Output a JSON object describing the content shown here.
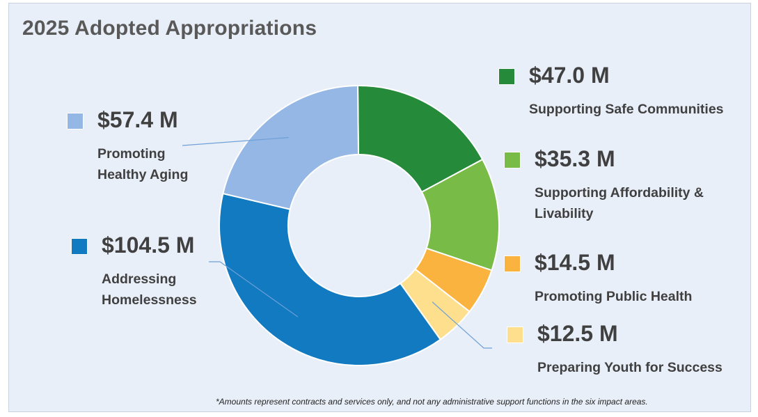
{
  "chart_data": {
    "type": "pie",
    "title": "2025 Adopted Appropriations",
    "unit": "$ M",
    "categories": [
      "Supporting Safe Communities",
      "Supporting Affordability & Livability",
      "Promoting Public Health",
      "Preparing Youth for Success",
      "Addressing Homelessness",
      "Promoting Healthy Aging"
    ],
    "values": [
      47.0,
      35.3,
      14.5,
      12.5,
      104.5,
      57.4
    ],
    "value_labels": [
      "$47.0 M",
      "$35.3 M",
      "$14.5 M",
      "$12.5 M",
      "$104.5 M",
      "$57.4 M"
    ],
    "legend_labels": [
      "Supporting Safe Communities",
      "Supporting Affordability &\nLivability",
      "Promoting Public Health",
      "Preparing Youth for Success",
      "Addressing\nHomelessness",
      "Promoting\nHealthy Aging"
    ],
    "colors": [
      "#258b3a",
      "#78bb47",
      "#fbb33f",
      "#fddf8e",
      "#127ac1",
      "#94b7e5"
    ],
    "donut": true,
    "footnote": "*Amounts represent contracts and services only, and not any administrative support functions in the six impact areas."
  }
}
